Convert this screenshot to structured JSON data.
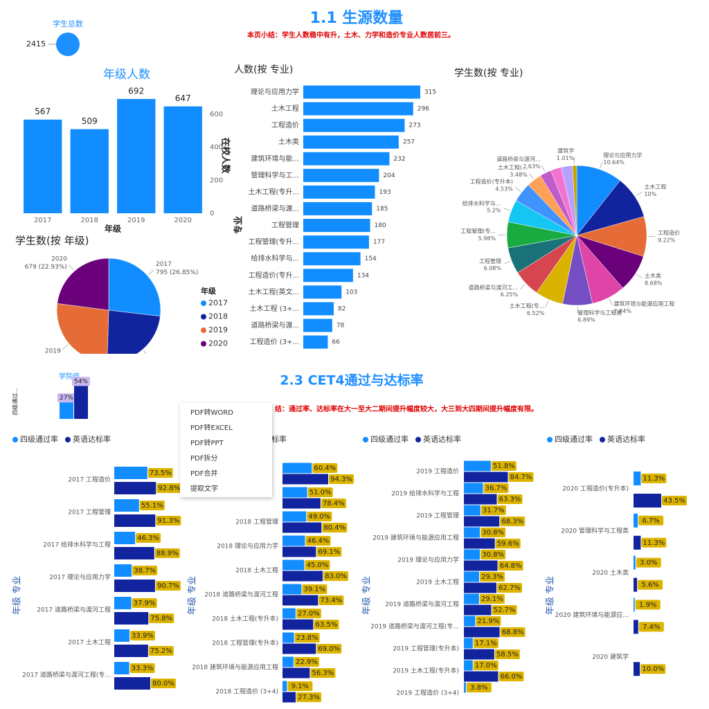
{
  "header": {
    "title": "1.1 生源数量",
    "summary": "本页小结：学生人数稳中有升，土木、力学和造价专业人数居前三。"
  },
  "kpi": {
    "label": "学生总数",
    "value": 2415
  },
  "header2": {
    "title": "2.3  CET4通过与达标率",
    "summary": "结：通过率、达标率在大一至大二期间提升幅度较大，大三到大四期间提升幅度有限。"
  },
  "context_menu": {
    "items": [
      "PDF转WORD",
      "PDF转EXCEL",
      "PDF转PPT",
      "PDF拆分",
      "PDF合并",
      "提取文字"
    ]
  },
  "chart_data": [
    {
      "type": "bar",
      "title": "年级人数",
      "categories": [
        "2017",
        "2018",
        "2019",
        "2020"
      ],
      "values": [
        567,
        509,
        692,
        647
      ],
      "color": "#118dff",
      "ylim": [
        0,
        700
      ],
      "yticks": [
        0,
        200,
        400,
        600
      ],
      "xlabel": "年级",
      "ylabel": "在校人数"
    },
    {
      "type": "pie",
      "title": "学生数(按 年级)",
      "categories": [
        "2017",
        "2018",
        "2019",
        "2020"
      ],
      "values": [
        795,
        700,
        787,
        679
      ],
      "value_labels": [
        "795 (26.85%)",
        null,
        null,
        "679 (22.93%)"
      ],
      "colors": [
        "#118dff",
        "#12239e",
        "#e66c37",
        "#6b007b"
      ],
      "legend_title": "年级",
      "legend": "right"
    },
    {
      "type": "hbar",
      "title": "人数(按 专业)",
      "ylabel": "专业",
      "categories": [
        "理论与应用力学",
        "土木工程",
        "工程造价",
        "土木类",
        "建筑环境与能...",
        "管理科学与工...",
        "土木工程(专升...",
        "道路桥梁与渡...",
        "工程管理",
        "工程管理(专升...",
        "给排水科学与...",
        "工程造价(专升...",
        "土木工程(英文...",
        "土木工程 (3+...",
        "道路桥梁与渡...",
        "工程造价 (3+..."
      ],
      "values": [
        315,
        296,
        273,
        257,
        232,
        204,
        193,
        185,
        180,
        177,
        154,
        134,
        103,
        82,
        78,
        66
      ],
      "color": "#118dff",
      "xlim": [
        0,
        330
      ]
    },
    {
      "type": "pie",
      "title": "学生数(按 专业)",
      "categories": [
        "理论与应用力学",
        "土木工程",
        "工程造价",
        "土木类",
        "建筑环境与能源应用工程",
        "管理科学与工程类",
        "土木工程(专...",
        "道路桥梁与渡河工...",
        "工程管理",
        "工程管理(专...",
        "给排水科学与...",
        "工程造价(专升本)",
        "土木工程(...",
        "道路桥梁与渡河...",
        null,
        null,
        "建筑学"
      ],
      "values": [
        10.64,
        10,
        9.22,
        8.68,
        7.84,
        6.89,
        6.52,
        6.25,
        6.08,
        5.98,
        5.2,
        4.53,
        3.48,
        2.63,
        2.45,
        2.6,
        1.01
      ],
      "value_labels": [
        "10.64%",
        "10%",
        "9.22%",
        "8.68%",
        "7.84%",
        "6.89%",
        "6.52%",
        "6.25%",
        "6.08%",
        "5.98%",
        "5.2%",
        "4.53%",
        "3.48%",
        "2.63%",
        null,
        null,
        "1.01%"
      ],
      "colors": [
        "#118dff",
        "#12239e",
        "#e66c37",
        "#6b007b",
        "#e044a7",
        "#744ec2",
        "#d9b300",
        "#d64550",
        "#197278",
        "#1aab40",
        "#15c6f4",
        "#4092ff",
        "#ffa058",
        "#be5dc9",
        "#f472d0",
        "#b5a1ff",
        "#c4a200"
      ]
    },
    {
      "type": "kpi_bars",
      "title": "学院值",
      "ylabel": "四级通过...",
      "values": [
        27,
        54
      ],
      "value_labels": [
        "27%",
        "54%"
      ],
      "colors": [
        "#118dff",
        "#12239e"
      ],
      "ylim": [
        0,
        60
      ]
    },
    {
      "type": "grouped_hbar",
      "ylabel": "年级 专业",
      "xlim": [
        0,
        100
      ],
      "categories": [
        "2017 工程造价",
        "2017 工程管理",
        "2017 给排水科学与工程",
        "2017 理论与应用力学",
        "2017 道路桥梁与渡河工程",
        "2017 土木工程",
        "2017 道路桥梁与渡河工程(专..."
      ],
      "series": [
        {
          "name": "四级通过率",
          "color": "#118dff",
          "values": [
            73.5,
            55.1,
            46.3,
            38.7,
            37.9,
            33.9,
            33.3
          ],
          "value_labels": [
            "73.5%",
            "55.1%",
            "46.3%",
            "38.7%",
            "37.9%",
            "33.9%",
            "33.3%"
          ]
        },
        {
          "name": "英语达标率",
          "color": "#12239e",
          "values": [
            92.8,
            91.3,
            88.9,
            90.7,
            75.8,
            75.2,
            80.0
          ],
          "value_labels": [
            "92.8%",
            "91.3%",
            "88.9%",
            "90.7%",
            "75.8%",
            "75.2%",
            "80.0%"
          ]
        }
      ]
    },
    {
      "type": "grouped_hbar",
      "ylabel": "年级 专业",
      "xlim": [
        0,
        100
      ],
      "categories": [
        null,
        null,
        "2018 工程管理",
        "2018 理论与应用力学",
        "2018 土木工程",
        "2018 道路桥梁与渡河工程",
        "2018 土木工程(专升本)",
        "2018 工程管理(专升本)",
        "2018 建筑环境与能源应用工程",
        "2018 工程造价 (3+4)"
      ],
      "series": [
        {
          "name": "四级通过率",
          "color": "#118dff",
          "values": [
            60.4,
            51.0,
            49.0,
            46.4,
            45.0,
            39.1,
            27.0,
            23.8,
            22.9,
            9.1
          ],
          "value_labels": [
            "60.4%",
            "51.0%",
            "49.0%",
            "46.4%",
            "45.0%",
            "39.1%",
            "27.0%",
            "23.8%",
            "22.9%",
            "9.1%"
          ]
        },
        {
          "name": "英语达标率",
          "color": "#12239e",
          "values": [
            94.3,
            78.4,
            80.4,
            69.1,
            83.0,
            73.4,
            63.5,
            69.0,
            56.3,
            27.3
          ],
          "value_labels": [
            "94.3%",
            "78.4%",
            "80.4%",
            "69.1%",
            "83.0%",
            "73.4%",
            "63.5%",
            "69.0%",
            "56.3%",
            "27.3%"
          ]
        }
      ]
    },
    {
      "type": "grouped_hbar",
      "ylabel": "年级 专业",
      "xlim": [
        0,
        100
      ],
      "categories": [
        "2019 工程造价",
        "2019 给排水科学与工程",
        "2019 工程管理",
        "2019 建筑环境与能源应用工程",
        "2019 理论与应用力学",
        "2019 土木工程",
        "2019 道路桥梁与渡河工程",
        "2019 道路桥梁与渡河工程(专...",
        "2019 工程管理(专升本)",
        "2019 土木工程(专升本)",
        "2019 工程造价 (3+4)"
      ],
      "series": [
        {
          "name": "四级通过率",
          "color": "#118dff",
          "values": [
            51.8,
            36.7,
            31.7,
            30.8,
            30.8,
            29.3,
            29.1,
            21.9,
            17.1,
            17.0,
            3.8
          ],
          "value_labels": [
            "51.8%",
            "36.7%",
            "31.7%",
            "30.8%",
            "30.8%",
            "29.3%",
            "29.1%",
            "21.9%",
            "17.1%",
            "17.0%",
            "3.8%"
          ]
        },
        {
          "name": "英语达标率",
          "color": "#12239e",
          "values": [
            84.7,
            63.3,
            68.3,
            59.6,
            64.8,
            62.7,
            52.7,
            68.8,
            58.5,
            66.0,
            null
          ],
          "value_labels": [
            "84.7%",
            "63.3%",
            "68.3%",
            "59.6%",
            "64.8%",
            "62.7%",
            "52.7%",
            "68.8%",
            "58.5%",
            "66.0%",
            null
          ]
        }
      ]
    },
    {
      "type": "grouped_hbar",
      "ylabel": "年级 专业",
      "xlim": [
        0,
        100
      ],
      "categories": [
        "2020 工程造价(专升本)",
        "2020 管理科学与工程类",
        "2020 土木类",
        "2020 建筑环境与能源应...",
        "2020 建筑学"
      ],
      "series": [
        {
          "name": "四级通过率",
          "color": "#118dff",
          "values": [
            11.3,
            6.7,
            3.0,
            1.9,
            null
          ],
          "value_labels": [
            "11.3%",
            "6.7%",
            "3.0%",
            "1.9%",
            null
          ]
        },
        {
          "name": "英语达标率",
          "color": "#12239e",
          "values": [
            43.5,
            11.3,
            5.6,
            7.4,
            10.0
          ],
          "value_labels": [
            "43.5%",
            "11.3%",
            "5.6%",
            "7.4%",
            "10.0%"
          ]
        }
      ]
    }
  ]
}
